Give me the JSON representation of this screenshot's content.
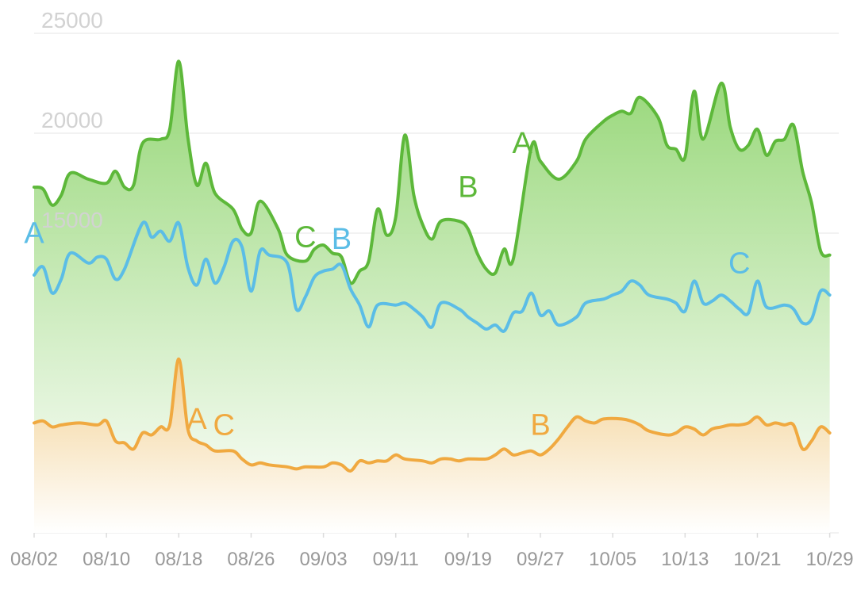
{
  "chart_data": {
    "type": "area",
    "title": "",
    "xlabel": "",
    "ylabel": "",
    "x_range": [
      "2021-08-02",
      "2021-10-30"
    ],
    "ylim": [
      0,
      25000
    ],
    "yticks": [
      15000,
      20000,
      25000
    ],
    "xticks": [
      "08/02",
      "08/10",
      "08/18",
      "08/26",
      "09/03",
      "09/11",
      "09/19",
      "09/27",
      "10/05",
      "10/13",
      "10/21",
      "10/29"
    ],
    "grid": true,
    "legend": "none",
    "series": [
      {
        "color": "#5db83a",
        "fill": "#8fd46e",
        "points": [
          [
            "2021-08-02",
            17300
          ],
          [
            "2021-08-03",
            17200
          ],
          [
            "2021-08-04",
            16400
          ],
          [
            "2021-08-05",
            16900
          ],
          [
            "2021-08-06",
            18000
          ],
          [
            "2021-08-08",
            17700
          ],
          [
            "2021-08-10",
            17500
          ],
          [
            "2021-08-11",
            18100
          ],
          [
            "2021-08-12",
            17300
          ],
          [
            "2021-08-13",
            17400
          ],
          [
            "2021-08-14",
            19500
          ],
          [
            "2021-08-16",
            19700
          ],
          [
            "2021-08-17",
            20200
          ],
          [
            "2021-08-18",
            23600
          ],
          [
            "2021-08-19",
            19800
          ],
          [
            "2021-08-20",
            17400
          ],
          [
            "2021-08-21",
            18500
          ],
          [
            "2021-08-22",
            17000
          ],
          [
            "2021-08-24",
            16200
          ],
          [
            "2021-08-25",
            15200
          ],
          [
            "2021-08-26",
            15000
          ],
          [
            "2021-08-27",
            16600
          ],
          [
            "2021-08-29",
            15200
          ],
          [
            "2021-08-30",
            13900
          ],
          [
            "2021-09-01",
            13600
          ],
          [
            "2021-09-02",
            14200
          ],
          [
            "2021-09-03",
            14400
          ],
          [
            "2021-09-04",
            14000
          ],
          [
            "2021-09-05",
            13800
          ],
          [
            "2021-09-06",
            12500
          ],
          [
            "2021-09-07",
            13100
          ],
          [
            "2021-09-08",
            13600
          ],
          [
            "2021-09-09",
            16200
          ],
          [
            "2021-09-10",
            14900
          ],
          [
            "2021-09-11",
            15800
          ],
          [
            "2021-09-12",
            19900
          ],
          [
            "2021-09-13",
            16900
          ],
          [
            "2021-09-14",
            15400
          ],
          [
            "2021-09-15",
            14700
          ],
          [
            "2021-09-16",
            15600
          ],
          [
            "2021-09-18",
            15600
          ],
          [
            "2021-09-19",
            15200
          ],
          [
            "2021-09-20",
            14000
          ],
          [
            "2021-09-21",
            13200
          ],
          [
            "2021-09-22",
            13000
          ],
          [
            "2021-09-23",
            14200
          ],
          [
            "2021-09-24",
            13700
          ],
          [
            "2021-09-26",
            19300
          ],
          [
            "2021-09-27",
            18600
          ],
          [
            "2021-09-29",
            17700
          ],
          [
            "2021-10-01",
            18600
          ],
          [
            "2021-10-02",
            19700
          ],
          [
            "2021-10-04",
            20600
          ],
          [
            "2021-10-05",
            20900
          ],
          [
            "2021-10-06",
            21100
          ],
          [
            "2021-10-07",
            21000
          ],
          [
            "2021-10-08",
            21800
          ],
          [
            "2021-10-10",
            20800
          ],
          [
            "2021-10-11",
            19400
          ],
          [
            "2021-10-12",
            19200
          ],
          [
            "2021-10-13",
            18800
          ],
          [
            "2021-10-14",
            22100
          ],
          [
            "2021-10-15",
            19700
          ],
          [
            "2021-10-17",
            22500
          ],
          [
            "2021-10-18",
            20300
          ],
          [
            "2021-10-19",
            19200
          ],
          [
            "2021-10-20",
            19400
          ],
          [
            "2021-10-21",
            20200
          ],
          [
            "2021-10-22",
            18900
          ],
          [
            "2021-10-23",
            19600
          ],
          [
            "2021-10-24",
            19700
          ],
          [
            "2021-10-25",
            20400
          ],
          [
            "2021-10-26",
            18100
          ],
          [
            "2021-10-27",
            16500
          ],
          [
            "2021-10-28",
            14100
          ],
          [
            "2021-10-29",
            13900
          ]
        ]
      },
      {
        "color": "#5bbde6",
        "fill": "none",
        "points": [
          [
            "2021-08-02",
            12900
          ],
          [
            "2021-08-03",
            13300
          ],
          [
            "2021-08-04",
            12000
          ],
          [
            "2021-08-05",
            12700
          ],
          [
            "2021-08-06",
            14000
          ],
          [
            "2021-08-08",
            13500
          ],
          [
            "2021-08-09",
            13800
          ],
          [
            "2021-08-10",
            13700
          ],
          [
            "2021-08-11",
            12700
          ],
          [
            "2021-08-12",
            13200
          ],
          [
            "2021-08-14",
            15500
          ],
          [
            "2021-08-15",
            14800
          ],
          [
            "2021-08-16",
            15100
          ],
          [
            "2021-08-17",
            14600
          ],
          [
            "2021-08-18",
            15500
          ],
          [
            "2021-08-19",
            13300
          ],
          [
            "2021-08-20",
            12400
          ],
          [
            "2021-08-21",
            13700
          ],
          [
            "2021-08-22",
            12500
          ],
          [
            "2021-08-23",
            13300
          ],
          [
            "2021-08-24",
            14600
          ],
          [
            "2021-08-25",
            14300
          ],
          [
            "2021-08-26",
            12100
          ],
          [
            "2021-08-27",
            14100
          ],
          [
            "2021-08-28",
            13900
          ],
          [
            "2021-08-30",
            13500
          ],
          [
            "2021-08-31",
            11200
          ],
          [
            "2021-09-01",
            11800
          ],
          [
            "2021-09-02",
            12800
          ],
          [
            "2021-09-03",
            13100
          ],
          [
            "2021-09-04",
            13200
          ],
          [
            "2021-09-05",
            13400
          ],
          [
            "2021-09-06",
            12200
          ],
          [
            "2021-09-07",
            11400
          ],
          [
            "2021-09-08",
            10300
          ],
          [
            "2021-09-09",
            11400
          ],
          [
            "2021-09-11",
            11400
          ],
          [
            "2021-09-12",
            11500
          ],
          [
            "2021-09-13",
            11200
          ],
          [
            "2021-09-14",
            10800
          ],
          [
            "2021-09-15",
            10300
          ],
          [
            "2021-09-16",
            11500
          ],
          [
            "2021-09-18",
            11200
          ],
          [
            "2021-09-19",
            10800
          ],
          [
            "2021-09-20",
            10500
          ],
          [
            "2021-09-21",
            10200
          ],
          [
            "2021-09-22",
            10400
          ],
          [
            "2021-09-23",
            10100
          ],
          [
            "2021-09-24",
            11000
          ],
          [
            "2021-09-25",
            11100
          ],
          [
            "2021-09-26",
            12000
          ],
          [
            "2021-09-27",
            10900
          ],
          [
            "2021-09-28",
            11100
          ],
          [
            "2021-09-29",
            10400
          ],
          [
            "2021-10-01",
            10800
          ],
          [
            "2021-10-02",
            11500
          ],
          [
            "2021-10-04",
            11700
          ],
          [
            "2021-10-05",
            11900
          ],
          [
            "2021-10-06",
            12100
          ],
          [
            "2021-10-07",
            12600
          ],
          [
            "2021-10-08",
            12400
          ],
          [
            "2021-10-09",
            11900
          ],
          [
            "2021-10-11",
            11700
          ],
          [
            "2021-10-12",
            11500
          ],
          [
            "2021-10-13",
            11100
          ],
          [
            "2021-10-14",
            12600
          ],
          [
            "2021-10-15",
            11500
          ],
          [
            "2021-10-16",
            11600
          ],
          [
            "2021-10-17",
            11900
          ],
          [
            "2021-10-18",
            11600
          ],
          [
            "2021-10-19",
            11200
          ],
          [
            "2021-10-20",
            11000
          ],
          [
            "2021-10-21",
            12600
          ],
          [
            "2021-10-22",
            11300
          ],
          [
            "2021-10-24",
            11400
          ],
          [
            "2021-10-25",
            11200
          ],
          [
            "2021-10-26",
            10500
          ],
          [
            "2021-10-27",
            10700
          ],
          [
            "2021-10-28",
            12100
          ],
          [
            "2021-10-29",
            11900
          ]
        ]
      },
      {
        "color": "#f0a940",
        "fill": "#f5cf8f",
        "points": [
          [
            "2021-08-02",
            5500
          ],
          [
            "2021-08-03",
            5600
          ],
          [
            "2021-08-04",
            5300
          ],
          [
            "2021-08-05",
            5400
          ],
          [
            "2021-08-07",
            5500
          ],
          [
            "2021-08-09",
            5400
          ],
          [
            "2021-08-10",
            5600
          ],
          [
            "2021-08-11",
            4600
          ],
          [
            "2021-08-12",
            4500
          ],
          [
            "2021-08-13",
            4200
          ],
          [
            "2021-08-14",
            5000
          ],
          [
            "2021-08-15",
            4900
          ],
          [
            "2021-08-16",
            5300
          ],
          [
            "2021-08-17",
            5400
          ],
          [
            "2021-08-18",
            8700
          ],
          [
            "2021-08-19",
            5200
          ],
          [
            "2021-08-20",
            4600
          ],
          [
            "2021-08-21",
            4400
          ],
          [
            "2021-08-22",
            4100
          ],
          [
            "2021-08-24",
            4100
          ],
          [
            "2021-08-25",
            3700
          ],
          [
            "2021-08-26",
            3400
          ],
          [
            "2021-08-27",
            3500
          ],
          [
            "2021-08-28",
            3400
          ],
          [
            "2021-08-30",
            3300
          ],
          [
            "2021-08-31",
            3200
          ],
          [
            "2021-09-01",
            3300
          ],
          [
            "2021-09-03",
            3300
          ],
          [
            "2021-09-04",
            3500
          ],
          [
            "2021-09-05",
            3400
          ],
          [
            "2021-09-06",
            3100
          ],
          [
            "2021-09-07",
            3600
          ],
          [
            "2021-09-08",
            3500
          ],
          [
            "2021-09-09",
            3600
          ],
          [
            "2021-09-10",
            3600
          ],
          [
            "2021-09-11",
            3900
          ],
          [
            "2021-09-12",
            3700
          ],
          [
            "2021-09-14",
            3600
          ],
          [
            "2021-09-15",
            3500
          ],
          [
            "2021-09-16",
            3700
          ],
          [
            "2021-09-17",
            3700
          ],
          [
            "2021-09-18",
            3600
          ],
          [
            "2021-09-19",
            3700
          ],
          [
            "2021-09-21",
            3700
          ],
          [
            "2021-09-22",
            3900
          ],
          [
            "2021-09-23",
            4200
          ],
          [
            "2021-09-24",
            3900
          ],
          [
            "2021-09-25",
            4000
          ],
          [
            "2021-09-26",
            4100
          ],
          [
            "2021-09-27",
            3900
          ],
          [
            "2021-09-28",
            4200
          ],
          [
            "2021-09-29",
            4700
          ],
          [
            "2021-09-30",
            5300
          ],
          [
            "2021-10-01",
            5800
          ],
          [
            "2021-10-02",
            5600
          ],
          [
            "2021-10-03",
            5500
          ],
          [
            "2021-10-04",
            5700
          ],
          [
            "2021-10-06",
            5700
          ],
          [
            "2021-10-07",
            5600
          ],
          [
            "2021-10-08",
            5400
          ],
          [
            "2021-10-09",
            5100
          ],
          [
            "2021-10-11",
            4900
          ],
          [
            "2021-10-12",
            5000
          ],
          [
            "2021-10-13",
            5300
          ],
          [
            "2021-10-14",
            5200
          ],
          [
            "2021-10-15",
            4900
          ],
          [
            "2021-10-16",
            5200
          ],
          [
            "2021-10-17",
            5300
          ],
          [
            "2021-10-18",
            5400
          ],
          [
            "2021-10-19",
            5400
          ],
          [
            "2021-10-20",
            5500
          ],
          [
            "2021-10-21",
            5800
          ],
          [
            "2021-10-22",
            5400
          ],
          [
            "2021-10-23",
            5500
          ],
          [
            "2021-10-24",
            5400
          ],
          [
            "2021-10-25",
            5400
          ],
          [
            "2021-10-26",
            4200
          ],
          [
            "2021-10-27",
            4600
          ],
          [
            "2021-10-28",
            5300
          ],
          [
            "2021-10-29",
            5000
          ]
        ]
      }
    ],
    "annotations": [
      {
        "text": "A",
        "x": "2021-08-02",
        "y": 14500,
        "color": "#5bbde6"
      },
      {
        "text": "C",
        "x": "2021-09-01",
        "y": 14300,
        "color": "#5db83a"
      },
      {
        "text": "B",
        "x": "2021-09-05",
        "y": 14200,
        "color": "#5bbde6"
      },
      {
        "text": "B",
        "x": "2021-09-19",
        "y": 16800,
        "color": "#5db83a"
      },
      {
        "text": "A",
        "x": "2021-09-25",
        "y": 19000,
        "color": "#5db83a"
      },
      {
        "text": "C",
        "x": "2021-10-19",
        "y": 13000,
        "color": "#5bbde6"
      },
      {
        "text": "A",
        "x": "2021-08-20",
        "y": 5200,
        "color": "#f0a940"
      },
      {
        "text": "C",
        "x": "2021-08-23",
        "y": 4900,
        "color": "#f0a940"
      },
      {
        "text": "B",
        "x": "2021-09-27",
        "y": 4900,
        "color": "#f0a940"
      }
    ]
  }
}
